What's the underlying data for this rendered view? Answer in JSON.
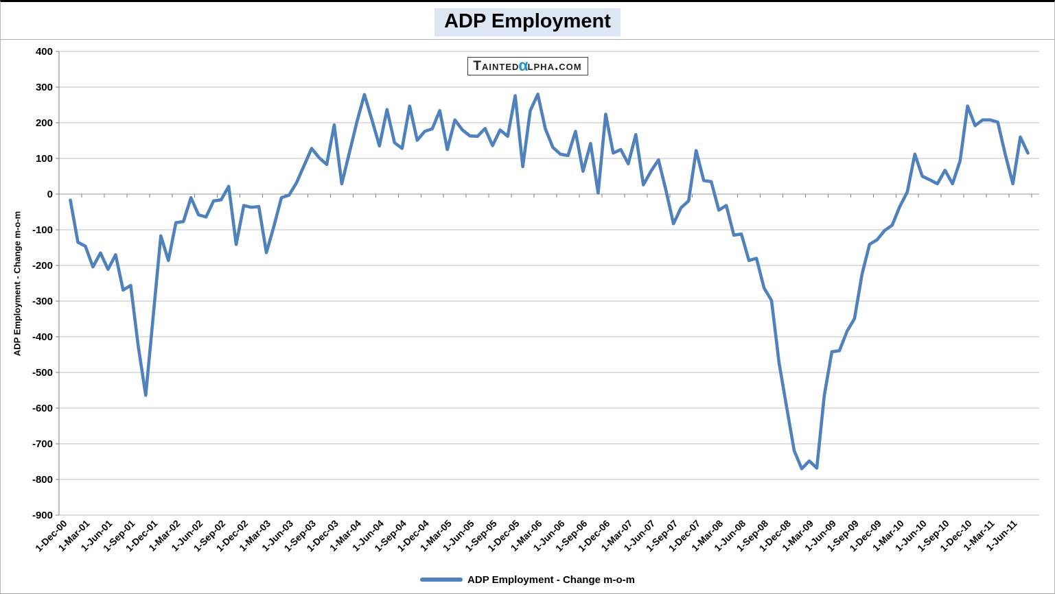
{
  "title": "ADP Employment",
  "watermark": {
    "part1": "Tainted",
    "alpha": "α",
    "part2": "lpha.com"
  },
  "y_axis_title": "ADP Employment - Change m-o-m",
  "legend": {
    "label": "ADP Employment - Change m-o-m"
  },
  "colors": {
    "series_line": "#4F81BD",
    "title_highlight": "#dce7f3",
    "gridline": "#bfbfbf",
    "axis_line": "#808080",
    "watermark_alpha": "#2592cf",
    "background": "#ffffff"
  },
  "chart_data": {
    "type": "line",
    "title": "ADP Employment",
    "xlabel": "",
    "ylabel": "ADP Employment - Change m-o-m",
    "ylim": [
      -900,
      400
    ],
    "y_tick_step": 100,
    "grid": "horizontal-only",
    "legend_position": "bottom-center",
    "x_axis": {
      "first_category": "Dec-2000",
      "last_category": "Sep-2011",
      "n_categories": 130,
      "tick_label_every_n_months": 3,
      "tick_label_rotation_deg": -45
    },
    "x_tick_labels": [
      "1-Dec-00",
      "1-Mar-01",
      "1-Jun-01",
      "1-Sep-01",
      "1-Dec-01",
      "1-Mar-02",
      "1-Jun-02",
      "1-Sep-02",
      "1-Dec-02",
      "1-Mar-03",
      "1-Jun-03",
      "1-Sep-03",
      "1-Dec-03",
      "1-Mar-04",
      "1-Jun-04",
      "1-Sep-04",
      "1-Dec-04",
      "1-Mar-05",
      "1-Jun-05",
      "1-Sep-05",
      "1-Dec-05",
      "1-Mar-06",
      "1-Jun-06",
      "1-Sep-06",
      "1-Dec-06",
      "1-Mar-07",
      "1-Jun-07",
      "1-Sep-07",
      "1-Dec-07",
      "1-Mar-08",
      "1-Jun-08",
      "1-Sep-08",
      "1-Dec-08",
      "1-Mar-09",
      "1-Jun-09",
      "1-Sep-09",
      "1-Dec-09",
      "1-Mar-10",
      "1-Jun-10",
      "1-Sep-10",
      "1-Dec-10",
      "1-Mar-11",
      "1-Jun-11"
    ],
    "series": [
      {
        "name": "ADP Employment - Change m-o-m",
        "color": "#4F81BD",
        "frequency": "monthly",
        "start_month": "Jan-2001",
        "end_month": "Aug-2011",
        "start_category_index": 1,
        "values": [
          -17,
          -135,
          -146,
          -204,
          -165,
          -211,
          -170,
          -269,
          -256,
          -425,
          -564,
          -340,
          -117,
          -186,
          -80,
          -77,
          -10,
          -58,
          -64,
          -19,
          -16,
          22,
          -141,
          -32,
          -37,
          -35,
          -164,
          -90,
          -10,
          -3,
          32,
          80,
          128,
          102,
          83,
          194,
          29,
          115,
          202,
          279,
          208,
          135,
          237,
          144,
          128,
          247,
          151,
          176,
          183,
          234,
          125,
          208,
          180,
          163,
          162,
          184,
          136,
          180,
          162,
          276,
          77,
          234,
          280,
          183,
          131,
          112,
          108,
          176,
          64,
          142,
          3,
          224,
          115,
          125,
          85,
          167,
          26,
          64,
          96,
          10,
          -83,
          -38,
          -19,
          122,
          38,
          35,
          -45,
          -32,
          -115,
          -112,
          -186,
          -180,
          -263,
          -298,
          -473,
          -597,
          -719,
          -770,
          -748,
          -768,
          -564,
          -442,
          -439,
          -385,
          -349,
          -224,
          -141,
          -128,
          -102,
          -87,
          -35,
          6,
          112,
          50,
          40,
          29,
          67,
          29,
          93,
          247,
          192,
          208,
          208,
          202,
          111,
          29,
          160,
          115
        ]
      }
    ]
  }
}
